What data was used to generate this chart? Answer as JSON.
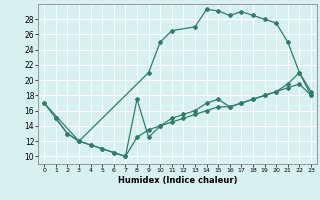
{
  "xlabel": "Humidex (Indice chaleur)",
  "bg_color": "#d8f0f0",
  "grid_color": "#ffffff",
  "line_color": "#2e7d6e",
  "xlim": [
    -0.5,
    23.5
  ],
  "ylim": [
    9,
    30
  ],
  "xticks": [
    0,
    1,
    2,
    3,
    4,
    5,
    6,
    7,
    8,
    9,
    10,
    11,
    12,
    13,
    14,
    15,
    16,
    17,
    18,
    19,
    20,
    21,
    22,
    23
  ],
  "yticks": [
    10,
    12,
    14,
    16,
    18,
    20,
    22,
    24,
    26,
    28
  ],
  "line1_x": [
    0,
    1,
    2,
    3,
    9,
    10,
    11,
    13,
    14,
    15,
    16,
    17,
    18,
    19,
    20,
    21,
    22,
    23
  ],
  "line1_y": [
    17,
    15,
    13,
    12,
    21,
    25,
    26.5,
    27,
    29.3,
    29.1,
    28.5,
    29,
    28.5,
    28,
    27.5,
    25,
    21,
    18
  ],
  "line2_x": [
    0,
    3,
    4,
    5,
    6,
    7,
    8,
    9,
    10,
    11,
    12,
    13,
    14,
    15,
    16,
    17,
    18,
    19,
    20,
    21,
    22,
    23
  ],
  "line2_y": [
    17,
    12,
    11.5,
    11,
    10.5,
    10,
    17.5,
    12.5,
    14,
    15,
    15.5,
    16,
    17,
    17.5,
    16.5,
    17,
    17.5,
    18,
    18.5,
    19.5,
    21,
    18.5
  ],
  "line3_x": [
    1,
    2,
    3,
    4,
    5,
    6,
    7,
    8,
    9,
    10,
    11,
    12,
    13,
    14,
    15,
    16,
    17,
    18,
    19,
    20,
    21,
    22,
    23
  ],
  "line3_y": [
    15,
    13,
    12,
    11.5,
    11,
    10.5,
    10,
    12.5,
    13.5,
    14,
    14.5,
    15,
    15.5,
    16,
    16.5,
    16.5,
    17,
    17.5,
    18,
    18.5,
    19,
    19.5,
    18
  ]
}
